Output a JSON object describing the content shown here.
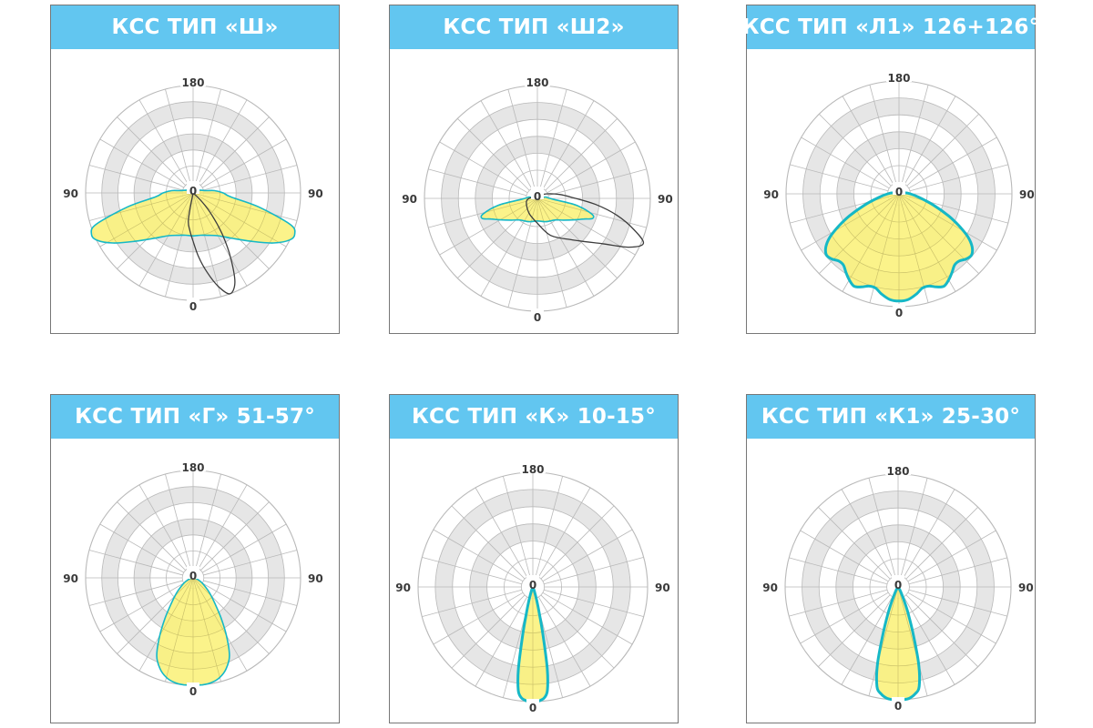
{
  "colors": {
    "header": "#62c6f0",
    "fill": "#fbf17a",
    "outline": "#16b8c6",
    "second_curve": "#3d3d3d",
    "ring": "#e6e6e6",
    "grid": "#b9b9b9"
  },
  "chart_data": [
    {
      "type": "polar",
      "title": "КСС ТИП «Ш»",
      "tick_labels": {
        "top": "180",
        "left": "90",
        "right": "90",
        "bottom": "0",
        "center": "0"
      },
      "series": [
        {
          "style": "filled",
          "points": [
            [
              0,
              0.4
            ],
            [
              10,
              0.4
            ],
            [
              20,
              0.42
            ],
            [
              30,
              0.46
            ],
            [
              40,
              0.55
            ],
            [
              50,
              0.7
            ],
            [
              58,
              0.88
            ],
            [
              64,
              1.0
            ],
            [
              68,
              1.02
            ],
            [
              72,
              0.95
            ],
            [
              78,
              0.62
            ],
            [
              84,
              0.35
            ],
            [
              90,
              0.28
            ],
            [
              96,
              0.2
            ],
            [
              100,
              0.12
            ],
            [
              120,
              0.05
            ],
            [
              180,
              0.0
            ]
          ],
          "symmetric": true
        },
        {
          "style": "outline",
          "points": [
            [
              -10,
              0.25
            ],
            [
              -5,
              0.35
            ],
            [
              0,
              0.45
            ],
            [
              5,
              0.6
            ],
            [
              10,
              0.75
            ],
            [
              15,
              0.9
            ],
            [
              20,
              1.0
            ],
            [
              25,
              0.92
            ],
            [
              30,
              0.7
            ],
            [
              35,
              0.48
            ],
            [
              40,
              0.28
            ],
            [
              45,
              0.12
            ],
            [
              50,
              0.0
            ]
          ]
        }
      ]
    },
    {
      "type": "polar",
      "title": "КСС ТИП «Ш2»",
      "tick_labels": {
        "top": "180",
        "left": "90",
        "right": "90",
        "bottom": "0",
        "center": "0"
      },
      "series": [
        {
          "style": "filled",
          "points": [
            [
              0,
              0.2
            ],
            [
              20,
              0.22
            ],
            [
              40,
              0.25
            ],
            [
              50,
              0.3
            ],
            [
              60,
              0.38
            ],
            [
              66,
              0.45
            ],
            [
              70,
              0.52
            ],
            [
              74,
              0.5
            ],
            [
              80,
              0.35
            ],
            [
              86,
              0.15
            ],
            [
              92,
              0.1
            ],
            [
              100,
              0.07
            ],
            [
              180,
              0.0
            ]
          ],
          "symmetric": true
        },
        {
          "style": "outline",
          "points": [
            [
              -100,
              0.05
            ],
            [
              -75,
              0.1
            ],
            [
              -30,
              0.15
            ],
            [
              0,
              0.22
            ],
            [
              20,
              0.35
            ],
            [
              40,
              0.48
            ],
            [
              55,
              0.7
            ],
            [
              62,
              0.92
            ],
            [
              67,
              1.02
            ],
            [
              72,
              0.9
            ],
            [
              78,
              0.72
            ],
            [
              84,
              0.52
            ],
            [
              92,
              0.3
            ],
            [
              100,
              0.2
            ],
            [
              110,
              0.12
            ],
            [
              130,
              0.05
            ]
          ]
        }
      ]
    },
    {
      "type": "polar",
      "title": "КСС ТИП «Л1» 126+126°",
      "tick_labels": {
        "top": "180",
        "left": "90",
        "right": "90",
        "bottom": "0",
        "center": "0"
      },
      "series": [
        {
          "style": "filled",
          "points": [
            [
              0,
              0.95
            ],
            [
              5,
              0.94
            ],
            [
              10,
              0.9
            ],
            [
              14,
              0.86
            ],
            [
              18,
              0.86
            ],
            [
              22,
              0.89
            ],
            [
              26,
              0.91
            ],
            [
              30,
              0.88
            ],
            [
              34,
              0.84
            ],
            [
              38,
              0.8
            ],
            [
              42,
              0.8
            ],
            [
              46,
              0.83
            ],
            [
              50,
              0.84
            ],
            [
              54,
              0.8
            ],
            [
              58,
              0.72
            ],
            [
              62,
              0.6
            ],
            [
              66,
              0.48
            ],
            [
              72,
              0.32
            ],
            [
              80,
              0.18
            ],
            [
              90,
              0.1
            ],
            [
              100,
              0.05
            ],
            [
              120,
              0.0
            ],
            [
              180,
              0.0
            ]
          ],
          "symmetric": true
        }
      ]
    },
    {
      "type": "polar",
      "title": "КСС ТИП «Г» 51-57°",
      "tick_labels": {
        "top": "180",
        "left": "90",
        "right": "90",
        "bottom": "0",
        "center": "0"
      },
      "series": [
        {
          "style": "filled",
          "points": [
            [
              0,
              1.0
            ],
            [
              5,
              1.0
            ],
            [
              10,
              0.99
            ],
            [
              15,
              0.96
            ],
            [
              20,
              0.9
            ],
            [
              25,
              0.8
            ],
            [
              30,
              0.62
            ],
            [
              35,
              0.45
            ],
            [
              40,
              0.32
            ],
            [
              45,
              0.24
            ],
            [
              50,
              0.18
            ],
            [
              60,
              0.1
            ],
            [
              70,
              0.05
            ],
            [
              80,
              0.02
            ],
            [
              90,
              0.0
            ],
            [
              180,
              0.0
            ]
          ],
          "symmetric": true
        }
      ]
    },
    {
      "type": "polar",
      "title": "КСС ТИП «К» 10-15°",
      "tick_labels": {
        "top": "180",
        "left": "90",
        "right": "90",
        "bottom": "0",
        "center": "0"
      },
      "series": [
        {
          "style": "filled",
          "points": [
            [
              0,
              1.0
            ],
            [
              2,
              1.0
            ],
            [
              4,
              0.99
            ],
            [
              6,
              0.97
            ],
            [
              8,
              0.91
            ],
            [
              10,
              0.72
            ],
            [
              12,
              0.42
            ],
            [
              14,
              0.22
            ],
            [
              16,
              0.12
            ],
            [
              20,
              0.04
            ],
            [
              25,
              0.0
            ],
            [
              180,
              0.0
            ]
          ],
          "symmetric": true
        }
      ]
    },
    {
      "type": "polar",
      "title": "КСС ТИП «К1» 25-30°",
      "tick_labels": {
        "top": "180",
        "left": "90",
        "right": "90",
        "bottom": "0",
        "center": "0"
      },
      "series": [
        {
          "style": "filled",
          "points": [
            [
              0,
              1.0
            ],
            [
              3,
              1.0
            ],
            [
              6,
              0.99
            ],
            [
              9,
              0.96
            ],
            [
              12,
              0.9
            ],
            [
              15,
              0.7
            ],
            [
              18,
              0.42
            ],
            [
              21,
              0.24
            ],
            [
              24,
              0.12
            ],
            [
              30,
              0.04
            ],
            [
              40,
              0.0
            ],
            [
              180,
              0.0
            ]
          ],
          "symmetric": true
        }
      ]
    }
  ]
}
